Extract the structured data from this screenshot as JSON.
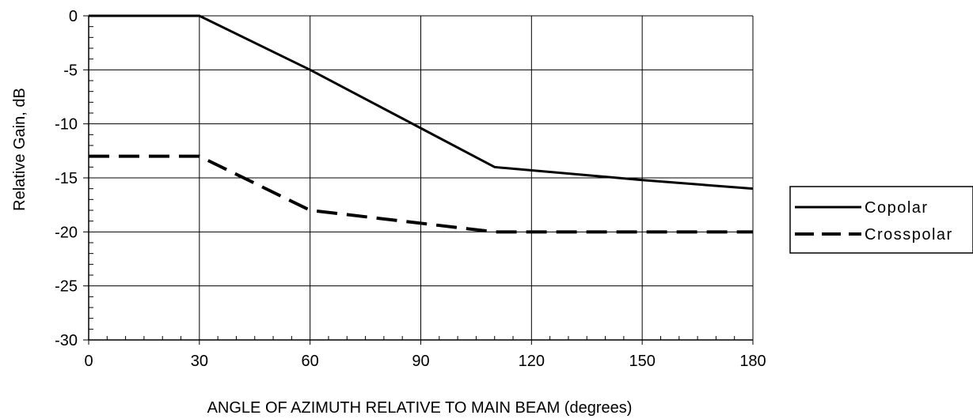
{
  "chart_data": {
    "type": "line",
    "title": "",
    "xlabel": "ANGLE OF AZIMUTH RELATIVE TO MAIN BEAM (degrees)",
    "ylabel": "Relative Gain, dB",
    "xlim": [
      0,
      180
    ],
    "ylim": [
      -30,
      0
    ],
    "x_ticks": [
      0,
      30,
      60,
      90,
      120,
      150,
      180
    ],
    "x_tick_labels": [
      "0",
      "30",
      "60",
      "90",
      "120",
      "150",
      "180"
    ],
    "y_ticks": [
      0,
      -5,
      -10,
      -15,
      -20,
      -25,
      -30
    ],
    "y_tick_labels": [
      "0",
      "-5",
      "-10",
      "-15",
      "-20",
      "-25",
      "-30"
    ],
    "grid": true,
    "legend_position": "right",
    "series": [
      {
        "name": "Copolar",
        "style": "solid",
        "color": "#000000",
        "x": [
          0,
          30,
          60,
          90,
          110,
          150,
          180
        ],
        "y": [
          0,
          0,
          -5,
          -10.4,
          -14,
          -15.2,
          -16
        ]
      },
      {
        "name": "Crosspolar",
        "style": "dashed",
        "color": "#000000",
        "x": [
          0,
          30,
          60,
          90,
          110,
          180
        ],
        "y": [
          -13,
          -13,
          -18,
          -19.2,
          -20,
          -20
        ]
      }
    ]
  }
}
